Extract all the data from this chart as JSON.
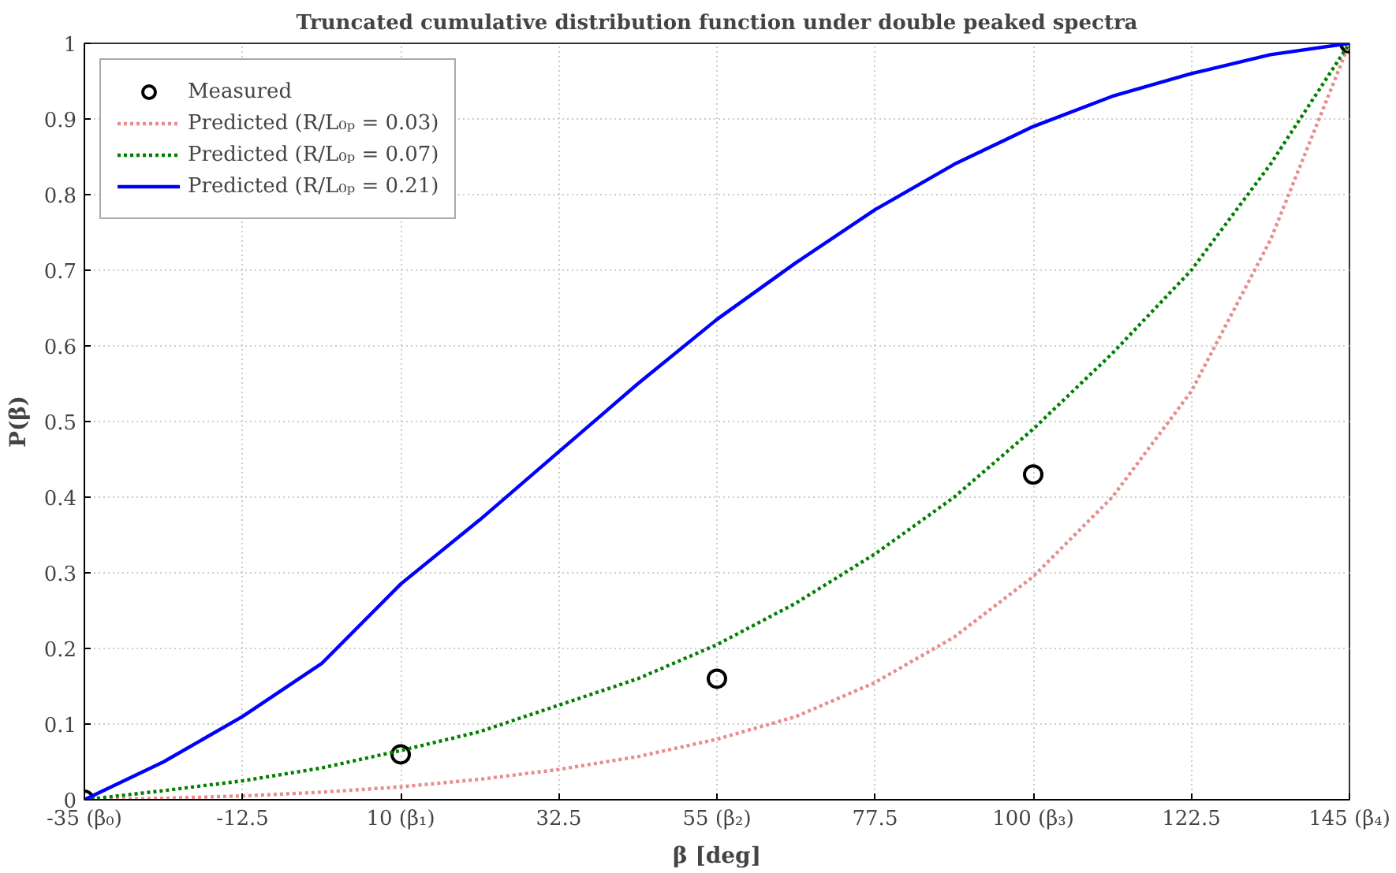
{
  "chart_data": {
    "type": "line",
    "title": "Truncated cumulative distribution function under double peaked spectra",
    "xlabel": "β [deg]",
    "ylabel": "P(β)",
    "xlim": [
      -35,
      145
    ],
    "ylim": [
      0,
      1
    ],
    "xticks": [
      {
        "value": -35,
        "label": "-35 (β₀)"
      },
      -12.5,
      {
        "value": 10,
        "label": "10 (β₁)"
      },
      32.5,
      {
        "value": 55,
        "label": "55 (β₂)"
      },
      77.5,
      {
        "value": 100,
        "label": "100 (β₃)"
      },
      122.5,
      {
        "value": 145,
        "label": "145 (β₄)"
      }
    ],
    "yticks": [
      0,
      0.1,
      0.2,
      0.3,
      0.4,
      0.5,
      0.6,
      0.7,
      0.8,
      0.9,
      1
    ],
    "grid": true,
    "legend": "top left",
    "series": [
      {
        "name": "Measured",
        "type": "scatter",
        "marker": "circle",
        "color": "#000000",
        "x": [
          -35,
          10,
          55,
          100,
          145
        ],
        "values": [
          0,
          0.06,
          0.16,
          0.43,
          1
        ]
      },
      {
        "name": "Predicted (R/L₀ₚ = 0.03)",
        "line_style": "dotted",
        "color": "#e88c8c",
        "x": [
          -35,
          -23.75,
          -12.5,
          -1.25,
          10,
          21.25,
          32.5,
          43.75,
          55,
          66.25,
          77.5,
          88.75,
          100,
          111.25,
          122.5,
          133.75,
          145
        ],
        "values": [
          0,
          0.002,
          0.005,
          0.01,
          0.017,
          0.027,
          0.04,
          0.057,
          0.08,
          0.11,
          0.155,
          0.215,
          0.295,
          0.4,
          0.54,
          0.74,
          1
        ]
      },
      {
        "name": "Predicted (R/L₀ₚ = 0.07)",
        "line_style": "dotted",
        "color": "#008000",
        "x": [
          -35,
          -23.75,
          -12.5,
          -1.25,
          10,
          21.25,
          32.5,
          43.75,
          55,
          66.25,
          77.5,
          88.75,
          100,
          111.25,
          122.5,
          133.75,
          145
        ],
        "values": [
          0,
          0.012,
          0.025,
          0.042,
          0.065,
          0.09,
          0.125,
          0.16,
          0.205,
          0.26,
          0.325,
          0.4,
          0.49,
          0.59,
          0.7,
          0.84,
          1
        ]
      },
      {
        "name": "Predicted (R/L₀ₚ = 0.21)",
        "line_style": "solid",
        "color": "#0000ff",
        "x": [
          -35,
          -23.75,
          -12.5,
          -1.25,
          10,
          21.25,
          32.5,
          43.75,
          55,
          66.25,
          77.5,
          88.75,
          100,
          111.25,
          122.5,
          133.75,
          145
        ],
        "values": [
          0,
          0.05,
          0.11,
          0.18,
          0.285,
          0.37,
          0.46,
          0.55,
          0.635,
          0.71,
          0.78,
          0.84,
          0.89,
          0.93,
          0.96,
          0.985,
          1
        ]
      }
    ]
  }
}
